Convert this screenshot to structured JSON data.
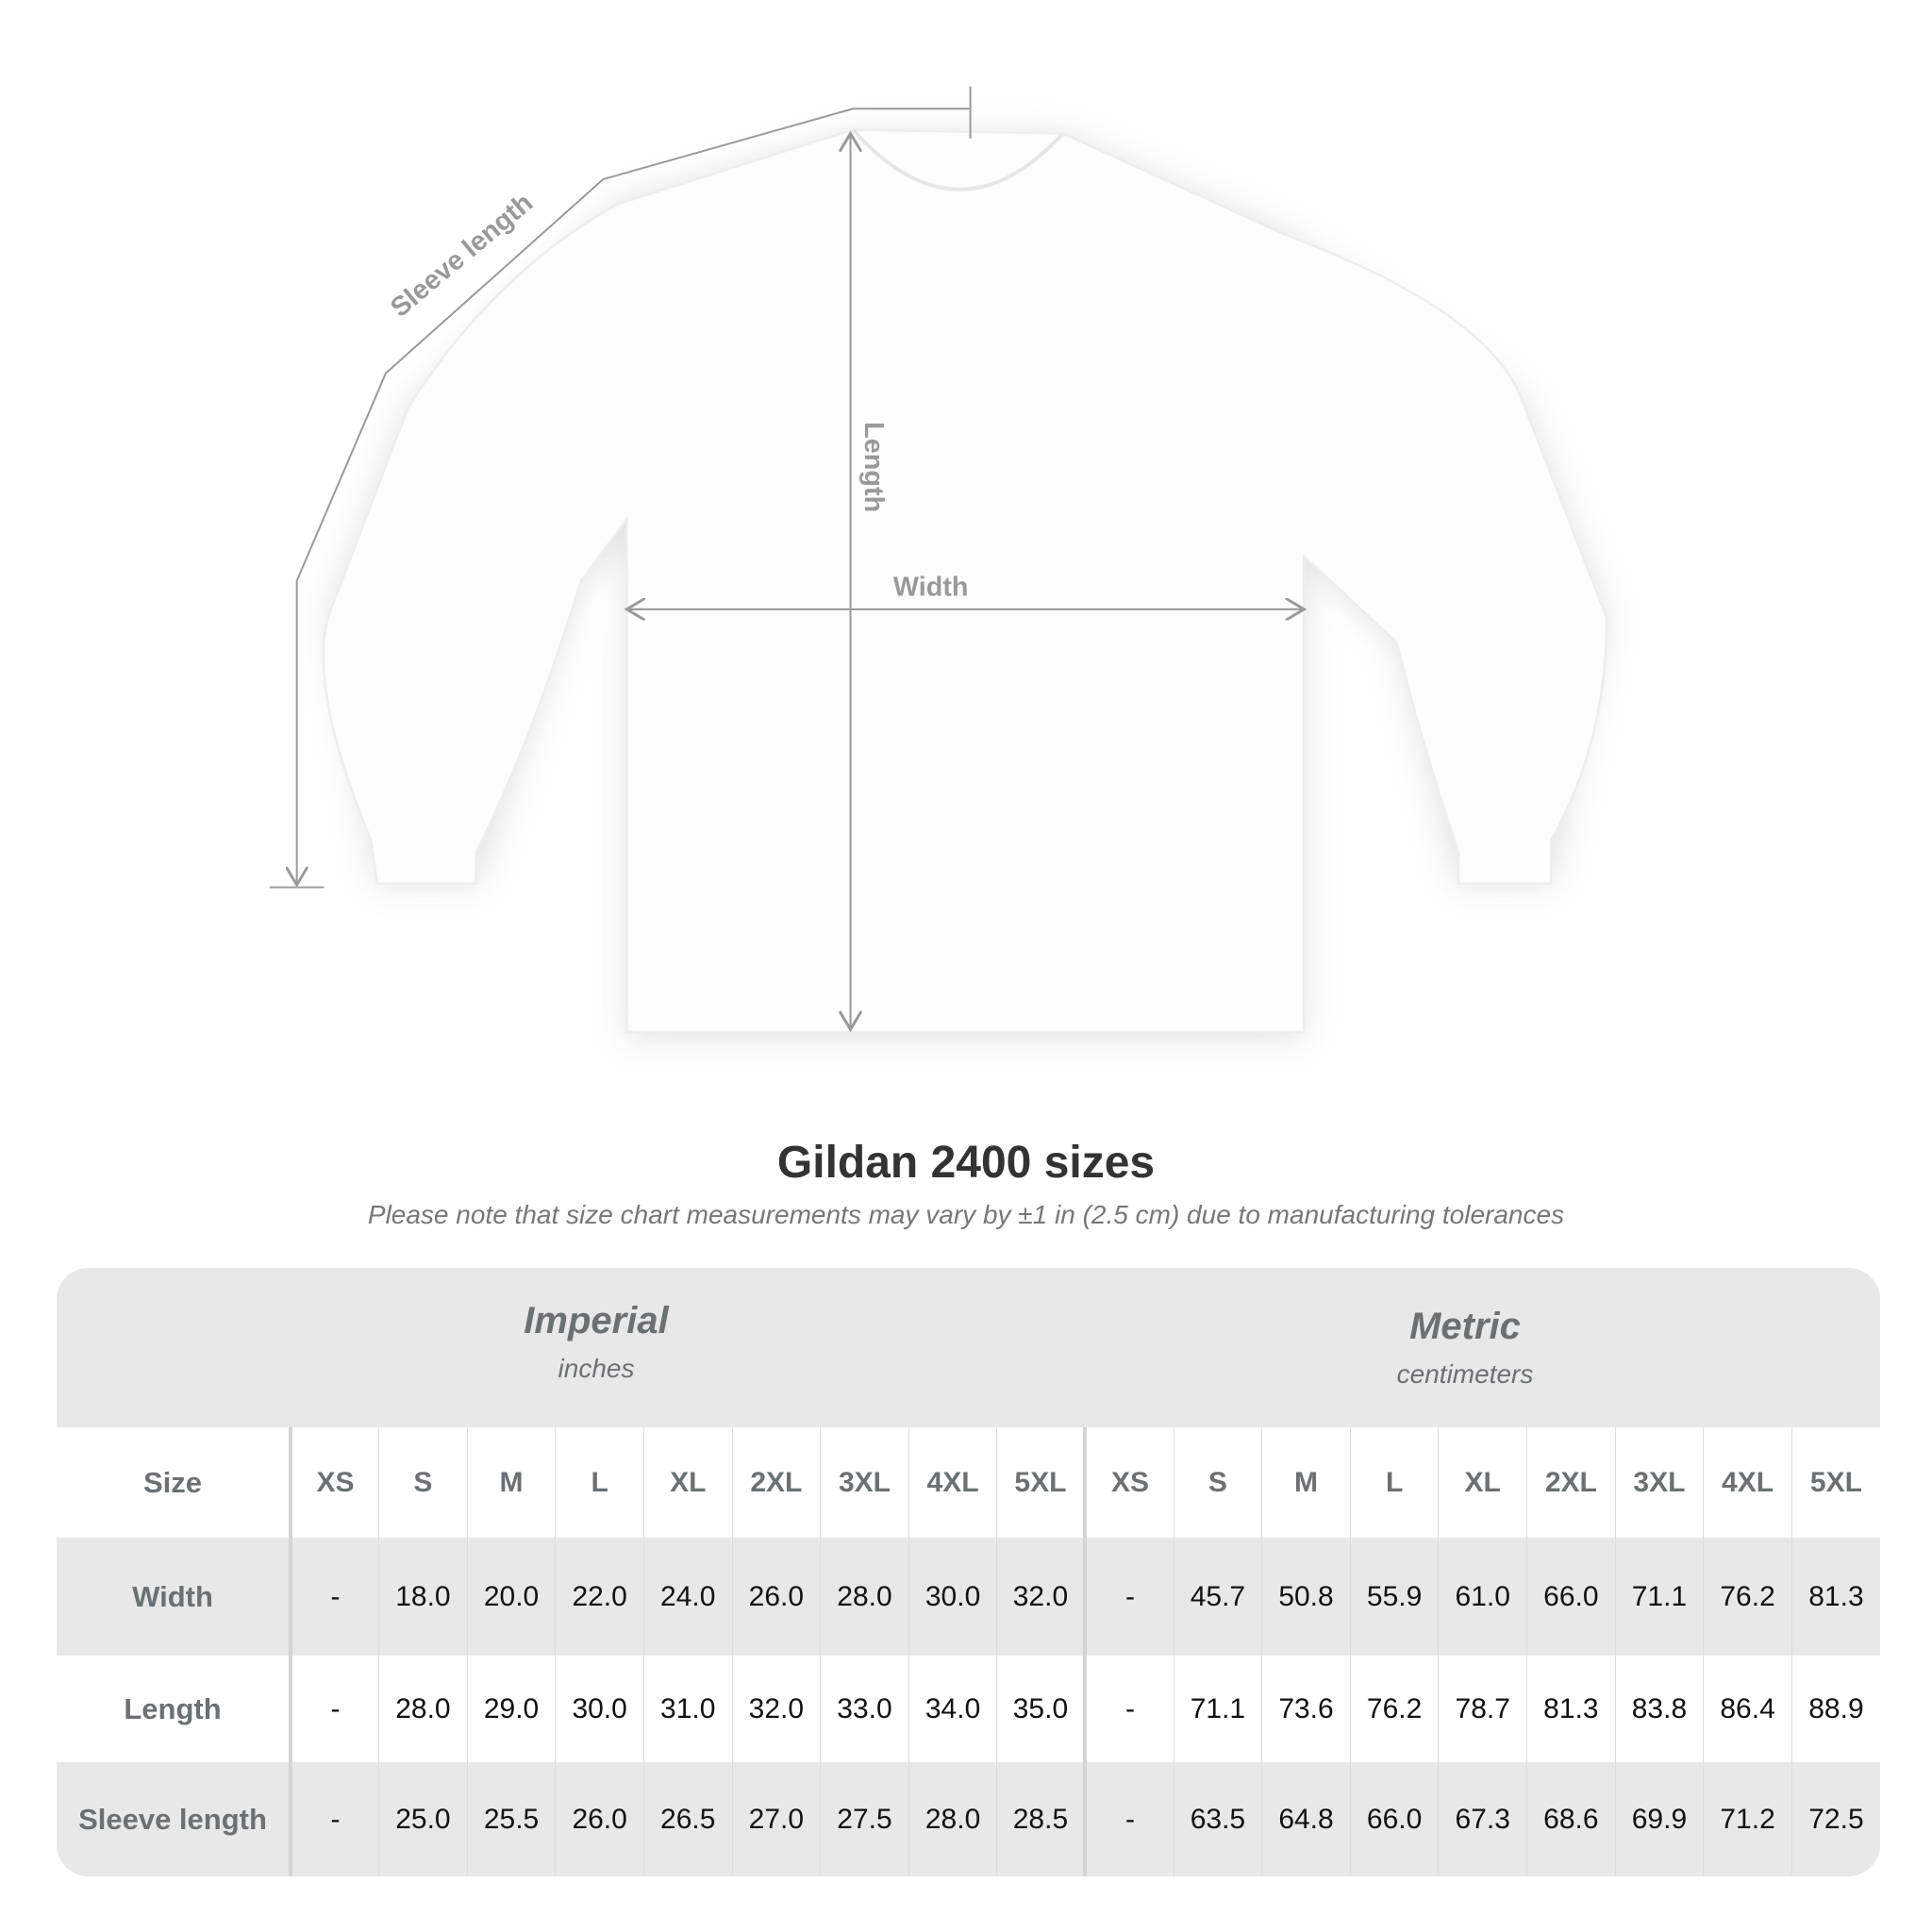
{
  "diagram": {
    "labels": {
      "sleeve": "Sleeve length",
      "length": "Length",
      "width": "Width"
    },
    "line_color": "#999999"
  },
  "title": "Gildan 2400 sizes",
  "subtitle": "Please note that size chart measurements may vary by ±1 in (2.5 cm) due to manufacturing tolerances",
  "table": {
    "imperial": {
      "name": "Imperial",
      "unit": "inches"
    },
    "metric": {
      "name": "Metric",
      "unit": "centimeters"
    },
    "size_label": "Size",
    "sizes": [
      "XS",
      "S",
      "M",
      "L",
      "XL",
      "2XL",
      "3XL",
      "4XL",
      "5XL"
    ],
    "rows": [
      {
        "label": "Width",
        "imperial": [
          "-",
          "18.0",
          "20.0",
          "22.0",
          "24.0",
          "26.0",
          "28.0",
          "30.0",
          "32.0"
        ],
        "metric": [
          "-",
          "45.7",
          "50.8",
          "55.9",
          "61.0",
          "66.0",
          "71.1",
          "76.2",
          "81.3"
        ]
      },
      {
        "label": "Length",
        "imperial": [
          "-",
          "28.0",
          "29.0",
          "30.0",
          "31.0",
          "32.0",
          "33.0",
          "34.0",
          "35.0"
        ],
        "metric": [
          "-",
          "71.1",
          "73.6",
          "76.2",
          "78.7",
          "81.3",
          "83.8",
          "86.4",
          "88.9"
        ]
      },
      {
        "label": "Sleeve length",
        "imperial": [
          "-",
          "25.0",
          "25.5",
          "26.0",
          "26.5",
          "27.0",
          "27.5",
          "28.0",
          "28.5"
        ],
        "metric": [
          "-",
          "63.5",
          "64.8",
          "66.0",
          "67.3",
          "68.6",
          "69.9",
          "71.2",
          "72.5"
        ]
      }
    ],
    "header_bg": "#e8e8e8",
    "header_text_color": "#6b7073"
  }
}
